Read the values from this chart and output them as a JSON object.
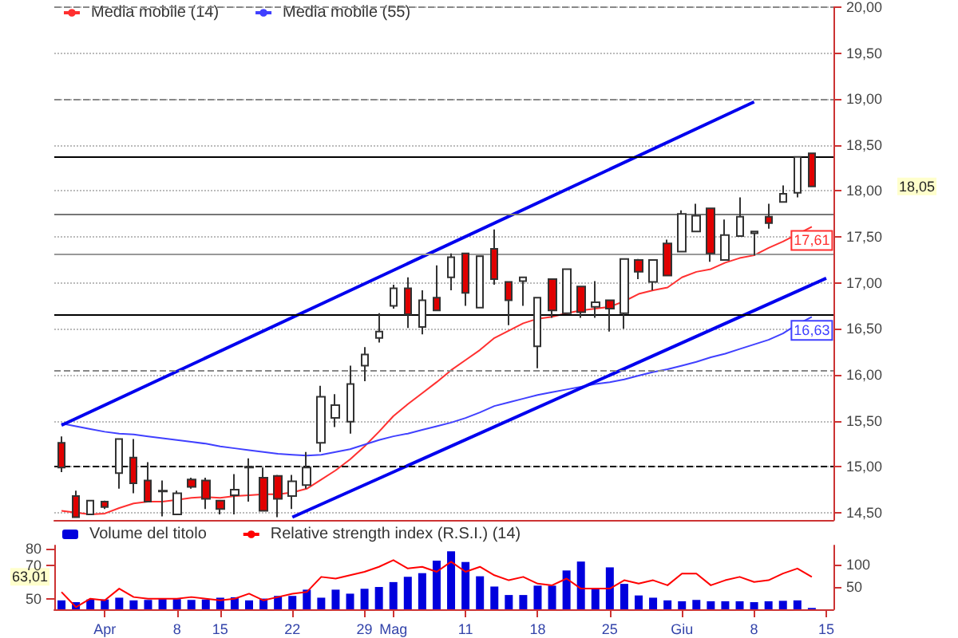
{
  "chart_data": [
    {
      "type": "candlestick",
      "legend": "top left",
      "grid": "y",
      "marker": "none",
      "tick_labels": "y",
      "categories": [
        null,
        null,
        null,
        null,
        null,
        null,
        null,
        null,
        null,
        null,
        null,
        null,
        null,
        null,
        null,
        null,
        null,
        null,
        null,
        null,
        null,
        null,
        null,
        null,
        null,
        null,
        null,
        null,
        null,
        null,
        null,
        null,
        null,
        null,
        null,
        null,
        null,
        null,
        null,
        null,
        null,
        null,
        null,
        null,
        null,
        null,
        null,
        null,
        null,
        null,
        null,
        null,
        null,
        null
      ],
      "ohlc": [
        [
          15.26,
          15.33,
          14.94,
          14.99
        ],
        [
          14.68,
          14.74,
          14.45,
          14.45
        ],
        [
          14.48,
          14.63,
          14.48,
          14.63
        ],
        [
          14.62,
          14.63,
          14.54,
          14.56
        ],
        [
          14.93,
          15.3,
          14.76,
          15.3
        ],
        [
          15.1,
          15.3,
          14.71,
          14.82
        ],
        [
          14.85,
          15.05,
          14.62,
          14.62
        ],
        [
          14.74,
          14.85,
          14.46,
          14.73
        ],
        [
          14.48,
          14.74,
          14.48,
          14.71
        ],
        [
          14.86,
          14.88,
          14.76,
          14.78
        ],
        [
          14.85,
          14.88,
          14.54,
          14.65
        ],
        [
          14.63,
          14.64,
          14.48,
          14.54
        ],
        [
          14.69,
          14.92,
          14.48,
          14.75
        ],
        [
          14.99,
          15.09,
          14.62,
          15.0
        ],
        [
          14.88,
          14.99,
          14.52,
          14.52
        ],
        [
          14.9,
          14.91,
          14.45,
          14.65
        ],
        [
          14.68,
          14.91,
          14.54,
          14.84
        ],
        [
          14.8,
          15.16,
          14.76,
          14.99
        ],
        [
          15.26,
          15.88,
          15.16,
          15.76
        ],
        [
          15.53,
          15.79,
          15.43,
          15.67
        ],
        [
          15.49,
          16.1,
          15.36,
          15.9
        ],
        [
          16.1,
          16.3,
          15.93,
          16.22
        ],
        [
          16.4,
          16.67,
          16.35,
          16.47
        ],
        [
          16.75,
          16.98,
          16.72,
          16.94
        ],
        [
          16.94,
          17.06,
          16.51,
          16.66
        ],
        [
          16.52,
          16.92,
          16.44,
          16.81
        ],
        [
          16.84,
          17.19,
          16.7,
          16.7
        ],
        [
          17.06,
          17.32,
          16.92,
          17.28
        ],
        [
          17.32,
          17.32,
          16.75,
          16.89
        ],
        [
          16.73,
          17.29,
          16.73,
          17.29
        ],
        [
          17.37,
          17.58,
          16.98,
          17.04
        ],
        [
          17.01,
          17.01,
          16.54,
          16.81
        ],
        [
          17.02,
          17.06,
          16.75,
          17.06
        ],
        [
          16.31,
          16.84,
          16.07,
          16.84
        ],
        [
          17.04,
          17.05,
          16.62,
          16.7
        ],
        [
          16.67,
          17.15,
          16.67,
          17.15
        ],
        [
          16.96,
          16.97,
          16.62,
          16.68
        ],
        [
          16.74,
          17.02,
          16.62,
          16.79
        ],
        [
          16.81,
          16.82,
          16.47,
          16.72
        ],
        [
          16.67,
          17.26,
          16.5,
          17.26
        ],
        [
          17.25,
          17.26,
          17.04,
          17.12
        ],
        [
          17.01,
          17.25,
          16.92,
          17.25
        ],
        [
          17.43,
          17.47,
          17.08,
          17.08
        ],
        [
          17.34,
          17.79,
          17.34,
          17.75
        ],
        [
          17.56,
          17.86,
          17.55,
          17.73
        ],
        [
          17.81,
          17.81,
          17.23,
          17.32
        ],
        [
          17.25,
          17.69,
          17.25,
          17.52
        ],
        [
          17.51,
          17.93,
          17.51,
          17.72
        ],
        [
          17.54,
          17.56,
          17.3,
          17.56
        ],
        [
          17.72,
          17.86,
          17.59,
          17.65
        ],
        [
          17.88,
          18.06,
          17.88,
          17.97
        ],
        [
          17.98,
          18.37,
          17.93,
          18.37
        ],
        [
          18.41,
          18.41,
          18.05,
          18.05
        ],
        null
      ],
      "series": [
        {
          "type": "line",
          "name": "Media mobile (14)",
          "color": "#ff3030",
          "values": [
            14.52,
            14.5,
            14.48,
            14.49,
            14.55,
            14.6,
            14.62,
            14.62,
            14.64,
            14.66,
            14.67,
            14.66,
            14.68,
            14.69,
            14.7,
            14.7,
            14.72,
            14.76,
            14.86,
            14.96,
            15.08,
            15.22,
            15.38,
            15.55,
            15.68,
            15.8,
            15.92,
            16.05,
            16.16,
            16.27,
            16.4,
            16.48,
            16.56,
            16.61,
            16.63,
            16.67,
            16.7,
            16.72,
            16.74,
            16.8,
            16.88,
            16.92,
            16.95,
            17.06,
            17.12,
            17.15,
            17.22,
            17.27,
            17.3,
            17.38,
            17.45,
            17.53,
            17.61,
            null
          ],
          "value_labels": [
            null,
            null,
            null,
            null,
            null,
            null,
            null,
            null,
            null,
            null,
            null,
            null,
            null,
            null,
            null,
            null,
            null,
            null,
            null,
            null,
            null,
            null,
            null,
            null,
            null,
            null,
            null,
            null,
            null,
            null,
            null,
            null,
            null,
            null,
            null,
            null,
            null,
            null,
            null,
            null,
            null,
            null,
            null,
            null,
            null,
            null,
            null,
            null,
            null,
            null,
            null,
            null,
            "17,61",
            null
          ]
        },
        {
          "type": "line",
          "name": "Media mobile (55)",
          "color": "#4040ff",
          "values": [
            15.47,
            15.44,
            15.41,
            15.38,
            15.36,
            15.35,
            15.33,
            15.31,
            15.29,
            15.27,
            15.25,
            15.22,
            15.2,
            15.18,
            15.16,
            15.14,
            15.13,
            15.12,
            15.13,
            15.16,
            15.19,
            15.24,
            15.29,
            15.33,
            15.36,
            15.4,
            15.44,
            15.48,
            15.53,
            15.59,
            15.66,
            15.7,
            15.74,
            15.78,
            15.81,
            15.84,
            15.87,
            15.9,
            15.92,
            15.95,
            15.99,
            16.03,
            16.06,
            16.1,
            16.14,
            16.19,
            16.23,
            16.28,
            16.33,
            16.38,
            16.45,
            16.55,
            16.63,
            null
          ],
          "value_labels": [
            null,
            null,
            null,
            null,
            null,
            null,
            null,
            null,
            null,
            null,
            null,
            null,
            null,
            null,
            null,
            null,
            null,
            null,
            null,
            null,
            null,
            null,
            null,
            null,
            null,
            null,
            null,
            null,
            null,
            null,
            null,
            null,
            null,
            null,
            null,
            null,
            null,
            null,
            null,
            null,
            null,
            null,
            null,
            null,
            null,
            null,
            null,
            null,
            null,
            null,
            null,
            null,
            "16,63",
            null
          ]
        },
        {
          "type": "line",
          "color": "#0000ee",
          "values": [
            15.45,
            null,
            null,
            null,
            null,
            null,
            null,
            null,
            null,
            null,
            null,
            null,
            null,
            null,
            null,
            null,
            null,
            null,
            null,
            null,
            null,
            null,
            null,
            null,
            null,
            null,
            null,
            null,
            null,
            null,
            null,
            null,
            null,
            null,
            null,
            null,
            null,
            null,
            null,
            null,
            null,
            null,
            null,
            null,
            null,
            null,
            null,
            null,
            18.97,
            null,
            null,
            null,
            null,
            null
          ]
        },
        {
          "type": "line",
          "color": "#0000ee",
          "values": [
            null,
            null,
            null,
            null,
            null,
            null,
            null,
            null,
            null,
            null,
            null,
            null,
            null,
            null,
            null,
            null,
            14.45,
            null,
            null,
            null,
            null,
            null,
            null,
            null,
            null,
            null,
            null,
            null,
            null,
            null,
            null,
            null,
            null,
            null,
            null,
            null,
            null,
            null,
            null,
            null,
            null,
            null,
            null,
            null,
            null,
            null,
            null,
            null,
            null,
            null,
            null,
            null,
            null,
            17.05
          ]
        }
      ],
      "ylim": [
        14.42,
        20.0
      ],
      "yticks": [
        {
          "value": 14.5,
          "label": "14,50"
        },
        {
          "value": 15,
          "label": "15,00"
        },
        {
          "value": 15.5,
          "label": "15,50"
        },
        {
          "value": 16,
          "label": "16,00"
        },
        {
          "value": 16.5,
          "label": "16,50"
        },
        {
          "value": 17,
          "label": "17,00"
        },
        {
          "value": 17.5,
          "label": "17,50"
        },
        {
          "value": 18,
          "label": "18,00"
        },
        {
          "value": 18.5,
          "label": "18,50"
        },
        {
          "value": 19,
          "label": "19,00"
        },
        {
          "value": 19.5,
          "label": "19,50"
        },
        {
          "value": 20,
          "label": "20,00"
        }
      ],
      "ref_lines": [
        {
          "axis": "y",
          "value": 20.0,
          "color": "#888888",
          "line_style": "dashed"
        },
        {
          "axis": "y",
          "value": 19.0,
          "color": "#888888",
          "line_style": "dashed"
        },
        {
          "axis": "y",
          "value": 18.37,
          "color": "#000000",
          "line_style": "solid"
        },
        {
          "axis": "y",
          "value": 17.74,
          "color": "#777777",
          "line_style": "solid"
        },
        {
          "axis": "y",
          "value": 17.32,
          "color": "#999999",
          "line_style": "solid"
        },
        {
          "axis": "y",
          "value": 16.66,
          "color": "#000000",
          "line_style": "solid"
        },
        {
          "axis": "y",
          "value": 16.05,
          "color": "#888888",
          "line_style": "dashed"
        },
        {
          "axis": "y",
          "value": 15.0,
          "color": "#000000",
          "line_style": "dashed"
        }
      ],
      "annotations": [
        "18,05"
      ]
    },
    {
      "type": "line",
      "legend": "top left",
      "marker": "none",
      "categories": [
        null,
        null,
        null,
        "Apr",
        null,
        null,
        null,
        null,
        "8",
        null,
        null,
        "15",
        null,
        null,
        null,
        null,
        "22",
        null,
        null,
        null,
        null,
        "29",
        null,
        "Mag",
        null,
        null,
        null,
        null,
        "11",
        null,
        null,
        null,
        null,
        "18",
        null,
        null,
        null,
        null,
        "25",
        null,
        null,
        null,
        null,
        "Giu",
        null,
        null,
        null,
        null,
        "8",
        null,
        null,
        null,
        null,
        "15"
      ],
      "series": [
        {
          "type": "bar",
          "name": "Volume del titolo",
          "color": "#0000dd",
          "axis": "y2",
          "values": [
            20,
            16,
            22,
            22,
            26,
            20,
            21,
            24,
            23,
            21,
            22,
            26,
            27,
            20,
            24,
            30,
            30,
            44,
            26,
            44,
            35,
            46,
            50,
            61,
            73,
            81,
            109,
            130,
            106,
            74,
            51,
            32,
            32,
            53,
            53,
            87,
            107,
            46,
            94,
            57,
            31,
            26,
            20,
            18,
            21,
            18,
            18,
            18,
            16,
            18,
            19,
            20,
            3,
            null
          ]
        },
        {
          "type": "line",
          "name": "Relative strength index (R.S.I.) (14)",
          "color": "#ff0000",
          "values": [
            54,
            45,
            50,
            49,
            56,
            51,
            50,
            50,
            50,
            51,
            50,
            49,
            50,
            53,
            49,
            51,
            53,
            54,
            63,
            62,
            64,
            66,
            69,
            73,
            68,
            69,
            66,
            72,
            66,
            69,
            64,
            61,
            63,
            59,
            58,
            62,
            56,
            56,
            56,
            61,
            59,
            61,
            58,
            65,
            65,
            58,
            61,
            63,
            60,
            61,
            65,
            68,
            63,
            null
          ]
        }
      ],
      "ylim": [
        43.7,
        81.7
      ],
      "yticks": [
        50,
        70,
        80
      ],
      "y2lim": [
        0,
        143
      ],
      "y2ticks": [
        50,
        100
      ],
      "annotations": [
        {
          "text": "63,01",
          "y": 63.01
        }
      ]
    }
  ]
}
